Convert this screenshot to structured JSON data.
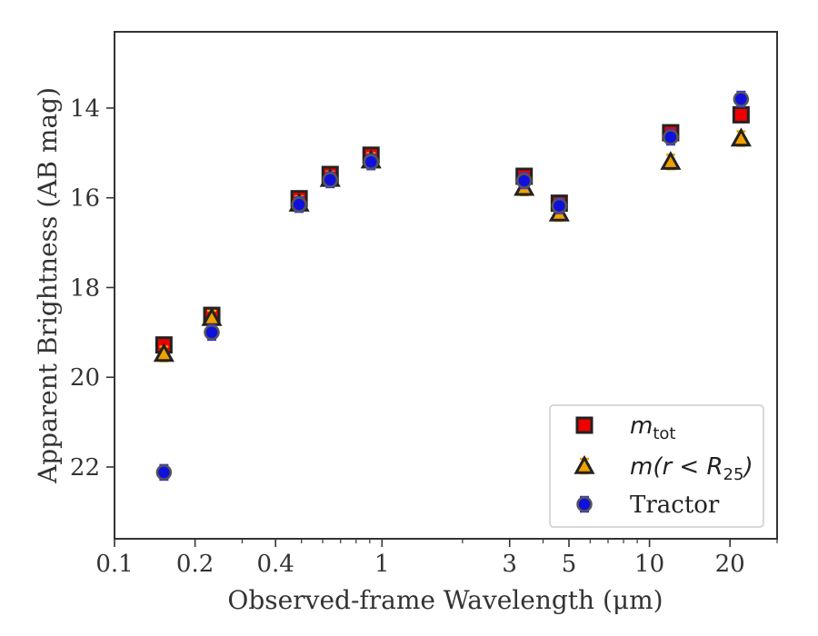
{
  "chart_data": {
    "type": "scatter",
    "xlabel": "Observed-frame Wavelength (μm)",
    "ylabel": "Apparent Brightness (AB mag)",
    "x_scale": "log",
    "xlim": [
      0.1,
      30
    ],
    "ylim": [
      23.6,
      12.3
    ],
    "y_inverted": true,
    "grid": false,
    "legend_position": "lower-right",
    "x_ticks": [
      {
        "value": 0.1,
        "label": "0.1"
      },
      {
        "value": 0.2,
        "label": "0.2"
      },
      {
        "value": 0.4,
        "label": "0.4"
      },
      {
        "value": 1,
        "label": "1"
      },
      {
        "value": 3,
        "label": "3"
      },
      {
        "value": 5,
        "label": "5"
      },
      {
        "value": 10,
        "label": "10"
      },
      {
        "value": 20,
        "label": "20"
      }
    ],
    "x_minor_ticks": [
      0.3,
      0.5,
      0.6,
      0.7,
      0.8,
      0.9,
      2,
      4,
      6,
      7,
      8,
      9,
      30
    ],
    "y_ticks": [
      {
        "value": 14,
        "label": "14"
      },
      {
        "value": 16,
        "label": "16"
      },
      {
        "value": 18,
        "label": "18"
      },
      {
        "value": 20,
        "label": "20"
      },
      {
        "value": 22,
        "label": "22"
      }
    ],
    "series": [
      {
        "name": "m_tot",
        "legend_label": {
          "base": "m",
          "sub": "tot",
          "rest": ""
        },
        "marker": "square",
        "color": "#ee0000",
        "edge_color": "#222222",
        "errbar_color": "#dd0000",
        "x": [
          0.153,
          0.231,
          0.49,
          0.64,
          0.91,
          3.4,
          4.6,
          12.0,
          22.0
        ],
        "y": [
          19.28,
          18.62,
          16.02,
          15.48,
          15.05,
          15.52,
          16.12,
          14.55,
          14.15
        ]
      },
      {
        "name": "m(r < R25)",
        "legend_label": {
          "base": "m(r < R",
          "sub": "25",
          "rest": ")"
        },
        "marker": "triangle",
        "color": "#f0a000",
        "edge_color": "#222222",
        "errbar_color": "#e8a800",
        "x": [
          0.153,
          0.231,
          0.49,
          0.64,
          0.91,
          3.4,
          4.6,
          12.0,
          22.0
        ],
        "y": [
          19.48,
          18.68,
          16.13,
          15.58,
          15.17,
          15.78,
          16.35,
          15.2,
          14.68
        ]
      },
      {
        "name": "Tractor",
        "legend_label": {
          "base": "Tractor",
          "sub": "",
          "rest": ""
        },
        "marker": "circle",
        "color": "#1010dd",
        "edge_color": "#555555",
        "errbar_color": "#3030ee",
        "x": [
          0.153,
          0.231,
          0.49,
          0.64,
          0.91,
          3.4,
          4.6,
          12.0,
          22.0
        ],
        "y": [
          22.12,
          19.0,
          16.15,
          15.6,
          15.2,
          15.62,
          16.18,
          14.65,
          13.8
        ]
      }
    ]
  }
}
